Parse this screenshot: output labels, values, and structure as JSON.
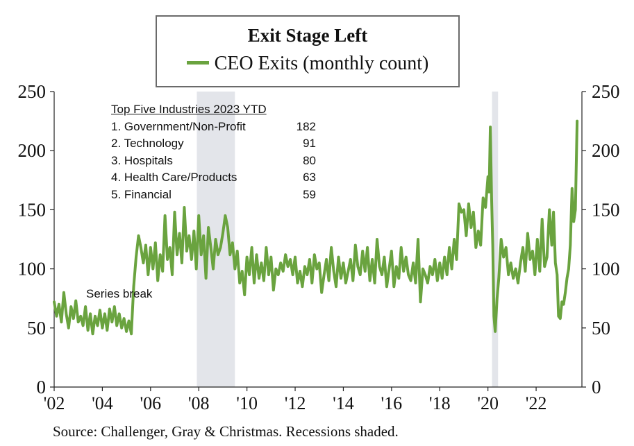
{
  "legend": {
    "title": "Exit Stage Left",
    "series_label": "CEO Exits (monthly count)"
  },
  "inset": {
    "title": "Top Five Industries 2023 YTD",
    "rows": [
      {
        "label": "1. Government/Non-Profit",
        "value": "182"
      },
      {
        "label": "2. Technology",
        "value": "91"
      },
      {
        "label": "3. Hospitals",
        "value": "80"
      },
      {
        "label": "4. Health Care/Products",
        "value": "63"
      },
      {
        "label": "5. Financial",
        "value": "59"
      }
    ]
  },
  "annotation": "Series break",
  "source": "Source:  Challenger, Gray & Christmas. Recessions shaded.",
  "colors": {
    "line": "#6aa33f",
    "recession": "#e3e5ea"
  },
  "chart_data": {
    "type": "line",
    "title": "Exit Stage Left",
    "xlabel": "",
    "ylabel": "",
    "ylim": [
      0,
      250
    ],
    "xlim": [
      2002,
      2023.9
    ],
    "y_ticks": [
      "0",
      "50",
      "100",
      "150",
      "200",
      "250"
    ],
    "x_ticks": [
      {
        "x": 2002,
        "label": "'02"
      },
      {
        "x": 2004,
        "label": "'04"
      },
      {
        "x": 2006,
        "label": "'06"
      },
      {
        "x": 2008,
        "label": "'08"
      },
      {
        "x": 2010,
        "label": "'10"
      },
      {
        "x": 2012,
        "label": "'12"
      },
      {
        "x": 2014,
        "label": "'14"
      },
      {
        "x": 2016,
        "label": "'16"
      },
      {
        "x": 2018,
        "label": "'18"
      },
      {
        "x": 2020,
        "label": "'20"
      },
      {
        "x": 2022,
        "label": "'22"
      }
    ],
    "recessions": [
      [
        2007.92,
        2009.5
      ],
      [
        2020.17,
        2020.42
      ]
    ],
    "grid": false,
    "series": [
      {
        "name": "CEO Exits (monthly count)",
        "points": [
          [
            2002.0,
            72
          ],
          [
            2002.1,
            60
          ],
          [
            2002.2,
            70
          ],
          [
            2002.3,
            55
          ],
          [
            2002.4,
            80
          ],
          [
            2002.5,
            62
          ],
          [
            2002.6,
            50
          ],
          [
            2002.7,
            68
          ],
          [
            2002.8,
            58
          ],
          [
            2002.9,
            73
          ],
          [
            2003.0,
            55
          ],
          [
            2003.1,
            60
          ],
          [
            2003.2,
            52
          ],
          [
            2003.3,
            68
          ],
          [
            2003.4,
            48
          ],
          [
            2003.5,
            62
          ],
          [
            2003.6,
            45
          ],
          [
            2003.7,
            60
          ],
          [
            2003.8,
            52
          ],
          [
            2003.9,
            65
          ],
          [
            2004.0,
            50
          ],
          [
            2004.1,
            62
          ],
          [
            2004.2,
            48
          ],
          [
            2004.3,
            66
          ],
          [
            2004.4,
            55
          ],
          [
            2004.5,
            68
          ],
          [
            2004.6,
            52
          ],
          [
            2004.7,
            62
          ],
          [
            2004.8,
            50
          ],
          [
            2004.9,
            58
          ],
          [
            2005.0,
            47
          ],
          [
            2005.1,
            56
          ],
          [
            2005.2,
            45
          ],
          [
            2005.3,
            85
          ],
          [
            2005.4,
            110
          ],
          [
            2005.5,
            128
          ],
          [
            2005.6,
            118
          ],
          [
            2005.7,
            105
          ],
          [
            2005.8,
            120
          ],
          [
            2005.9,
            95
          ],
          [
            2006.0,
            118
          ],
          [
            2006.1,
            100
          ],
          [
            2006.2,
            122
          ],
          [
            2006.3,
            90
          ],
          [
            2006.4,
            112
          ],
          [
            2006.5,
            98
          ],
          [
            2006.6,
            145
          ],
          [
            2006.7,
            108
          ],
          [
            2006.8,
            118
          ],
          [
            2006.9,
            95
          ],
          [
            2007.0,
            148
          ],
          [
            2007.1,
            112
          ],
          [
            2007.2,
            130
          ],
          [
            2007.3,
            105
          ],
          [
            2007.4,
            152
          ],
          [
            2007.5,
            115
          ],
          [
            2007.6,
            128
          ],
          [
            2007.7,
            108
          ],
          [
            2007.8,
            132
          ],
          [
            2007.9,
            100
          ],
          [
            2008.0,
            145
          ],
          [
            2008.1,
            112
          ],
          [
            2008.2,
            128
          ],
          [
            2008.3,
            92
          ],
          [
            2008.4,
            135
          ],
          [
            2008.5,
            118
          ],
          [
            2008.6,
            100
          ],
          [
            2008.7,
            125
          ],
          [
            2008.8,
            112
          ],
          [
            2008.9,
            118
          ],
          [
            2009.0,
            130
          ],
          [
            2009.1,
            145
          ],
          [
            2009.2,
            135
          ],
          [
            2009.3,
            112
          ],
          [
            2009.4,
            122
          ],
          [
            2009.5,
            100
          ],
          [
            2009.6,
            115
          ],
          [
            2009.7,
            88
          ],
          [
            2009.8,
            98
          ],
          [
            2009.9,
            78
          ],
          [
            2010.0,
            110
          ],
          [
            2010.1,
            95
          ],
          [
            2010.2,
            118
          ],
          [
            2010.3,
            88
          ],
          [
            2010.4,
            112
          ],
          [
            2010.5,
            92
          ],
          [
            2010.6,
            105
          ],
          [
            2010.7,
            90
          ],
          [
            2010.8,
            118
          ],
          [
            2010.9,
            95
          ],
          [
            2011.0,
            110
          ],
          [
            2011.1,
            82
          ],
          [
            2011.2,
            100
          ],
          [
            2011.3,
            95
          ],
          [
            2011.4,
            105
          ],
          [
            2011.5,
            98
          ],
          [
            2011.6,
            112
          ],
          [
            2011.7,
            102
          ],
          [
            2011.8,
            108
          ],
          [
            2011.9,
            95
          ],
          [
            2012.0,
            110
          ],
          [
            2012.1,
            88
          ],
          [
            2012.2,
            98
          ],
          [
            2012.3,
            85
          ],
          [
            2012.4,
            102
          ],
          [
            2012.5,
            95
          ],
          [
            2012.6,
            108
          ],
          [
            2012.7,
            88
          ],
          [
            2012.8,
            112
          ],
          [
            2012.9,
            100
          ],
          [
            2013.0,
            105
          ],
          [
            2013.1,
            80
          ],
          [
            2013.2,
            95
          ],
          [
            2013.3,
            108
          ],
          [
            2013.4,
            90
          ],
          [
            2013.5,
            118
          ],
          [
            2013.6,
            98
          ],
          [
            2013.7,
            85
          ],
          [
            2013.8,
            110
          ],
          [
            2013.9,
            92
          ],
          [
            2014.0,
            105
          ],
          [
            2014.1,
            88
          ],
          [
            2014.2,
            98
          ],
          [
            2014.3,
            108
          ],
          [
            2014.4,
            90
          ],
          [
            2014.5,
            120
          ],
          [
            2014.6,
            102
          ],
          [
            2014.7,
            95
          ],
          [
            2014.8,
            115
          ],
          [
            2014.9,
            98
          ],
          [
            2015.0,
            118
          ],
          [
            2015.1,
            90
          ],
          [
            2015.2,
            108
          ],
          [
            2015.3,
            88
          ],
          [
            2015.4,
            125
          ],
          [
            2015.5,
            102
          ],
          [
            2015.6,
            95
          ],
          [
            2015.7,
            110
          ],
          [
            2015.8,
            85
          ],
          [
            2015.9,
            100
          ],
          [
            2016.0,
            115
          ],
          [
            2016.1,
            85
          ],
          [
            2016.2,
            102
          ],
          [
            2016.3,
            92
          ],
          [
            2016.4,
            118
          ],
          [
            2016.5,
            98
          ],
          [
            2016.6,
            110
          ],
          [
            2016.7,
            95
          ],
          [
            2016.8,
            90
          ],
          [
            2016.9,
            105
          ],
          [
            2017.0,
            88
          ],
          [
            2017.1,
            125
          ],
          [
            2017.2,
            72
          ],
          [
            2017.3,
            100
          ],
          [
            2017.4,
            95
          ],
          [
            2017.5,
            88
          ],
          [
            2017.6,
            102
          ],
          [
            2017.7,
            95
          ],
          [
            2017.8,
            108
          ],
          [
            2017.9,
            90
          ],
          [
            2018.0,
            105
          ],
          [
            2018.1,
            92
          ],
          [
            2018.2,
            110
          ],
          [
            2018.3,
            95
          ],
          [
            2018.4,
            118
          ],
          [
            2018.5,
            100
          ],
          [
            2018.6,
            125
          ],
          [
            2018.7,
            108
          ],
          [
            2018.8,
            155
          ],
          [
            2018.9,
            148
          ],
          [
            2019.0,
            150
          ],
          [
            2019.1,
            128
          ],
          [
            2019.2,
            155
          ],
          [
            2019.3,
            135
          ],
          [
            2019.4,
            148
          ],
          [
            2019.5,
            118
          ],
          [
            2019.6,
            132
          ],
          [
            2019.7,
            120
          ],
          [
            2019.8,
            160
          ],
          [
            2019.9,
            152
          ],
          [
            2020.0,
            178
          ],
          [
            2020.05,
            165
          ],
          [
            2020.1,
            220
          ],
          [
            2020.15,
            160
          ],
          [
            2020.2,
            120
          ],
          [
            2020.25,
            60
          ],
          [
            2020.3,
            47
          ],
          [
            2020.38,
            75
          ],
          [
            2020.45,
            92
          ],
          [
            2020.55,
            125
          ],
          [
            2020.65,
            110
          ],
          [
            2020.75,
            118
          ],
          [
            2020.85,
            95
          ],
          [
            2020.95,
            105
          ],
          [
            2021.05,
            92
          ],
          [
            2021.15,
            100
          ],
          [
            2021.25,
            88
          ],
          [
            2021.35,
            105
          ],
          [
            2021.45,
            118
          ],
          [
            2021.55,
            98
          ],
          [
            2021.65,
            130
          ],
          [
            2021.75,
            108
          ],
          [
            2021.85,
            115
          ],
          [
            2021.95,
            95
          ],
          [
            2022.05,
            125
          ],
          [
            2022.15,
            98
          ],
          [
            2022.25,
            142
          ],
          [
            2022.35,
            102
          ],
          [
            2022.45,
            110
          ],
          [
            2022.55,
            150
          ],
          [
            2022.65,
            120
          ],
          [
            2022.72,
            148
          ],
          [
            2022.8,
            105
          ],
          [
            2022.87,
            95
          ],
          [
            2022.93,
            60
          ],
          [
            2023.0,
            58
          ],
          [
            2023.07,
            72
          ],
          [
            2023.14,
            70
          ],
          [
            2023.21,
            80
          ],
          [
            2023.28,
            92
          ],
          [
            2023.35,
            100
          ],
          [
            2023.42,
            120
          ],
          [
            2023.49,
            168
          ],
          [
            2023.56,
            140
          ],
          [
            2023.63,
            150
          ],
          [
            2023.7,
            225
          ]
        ]
      }
    ]
  }
}
